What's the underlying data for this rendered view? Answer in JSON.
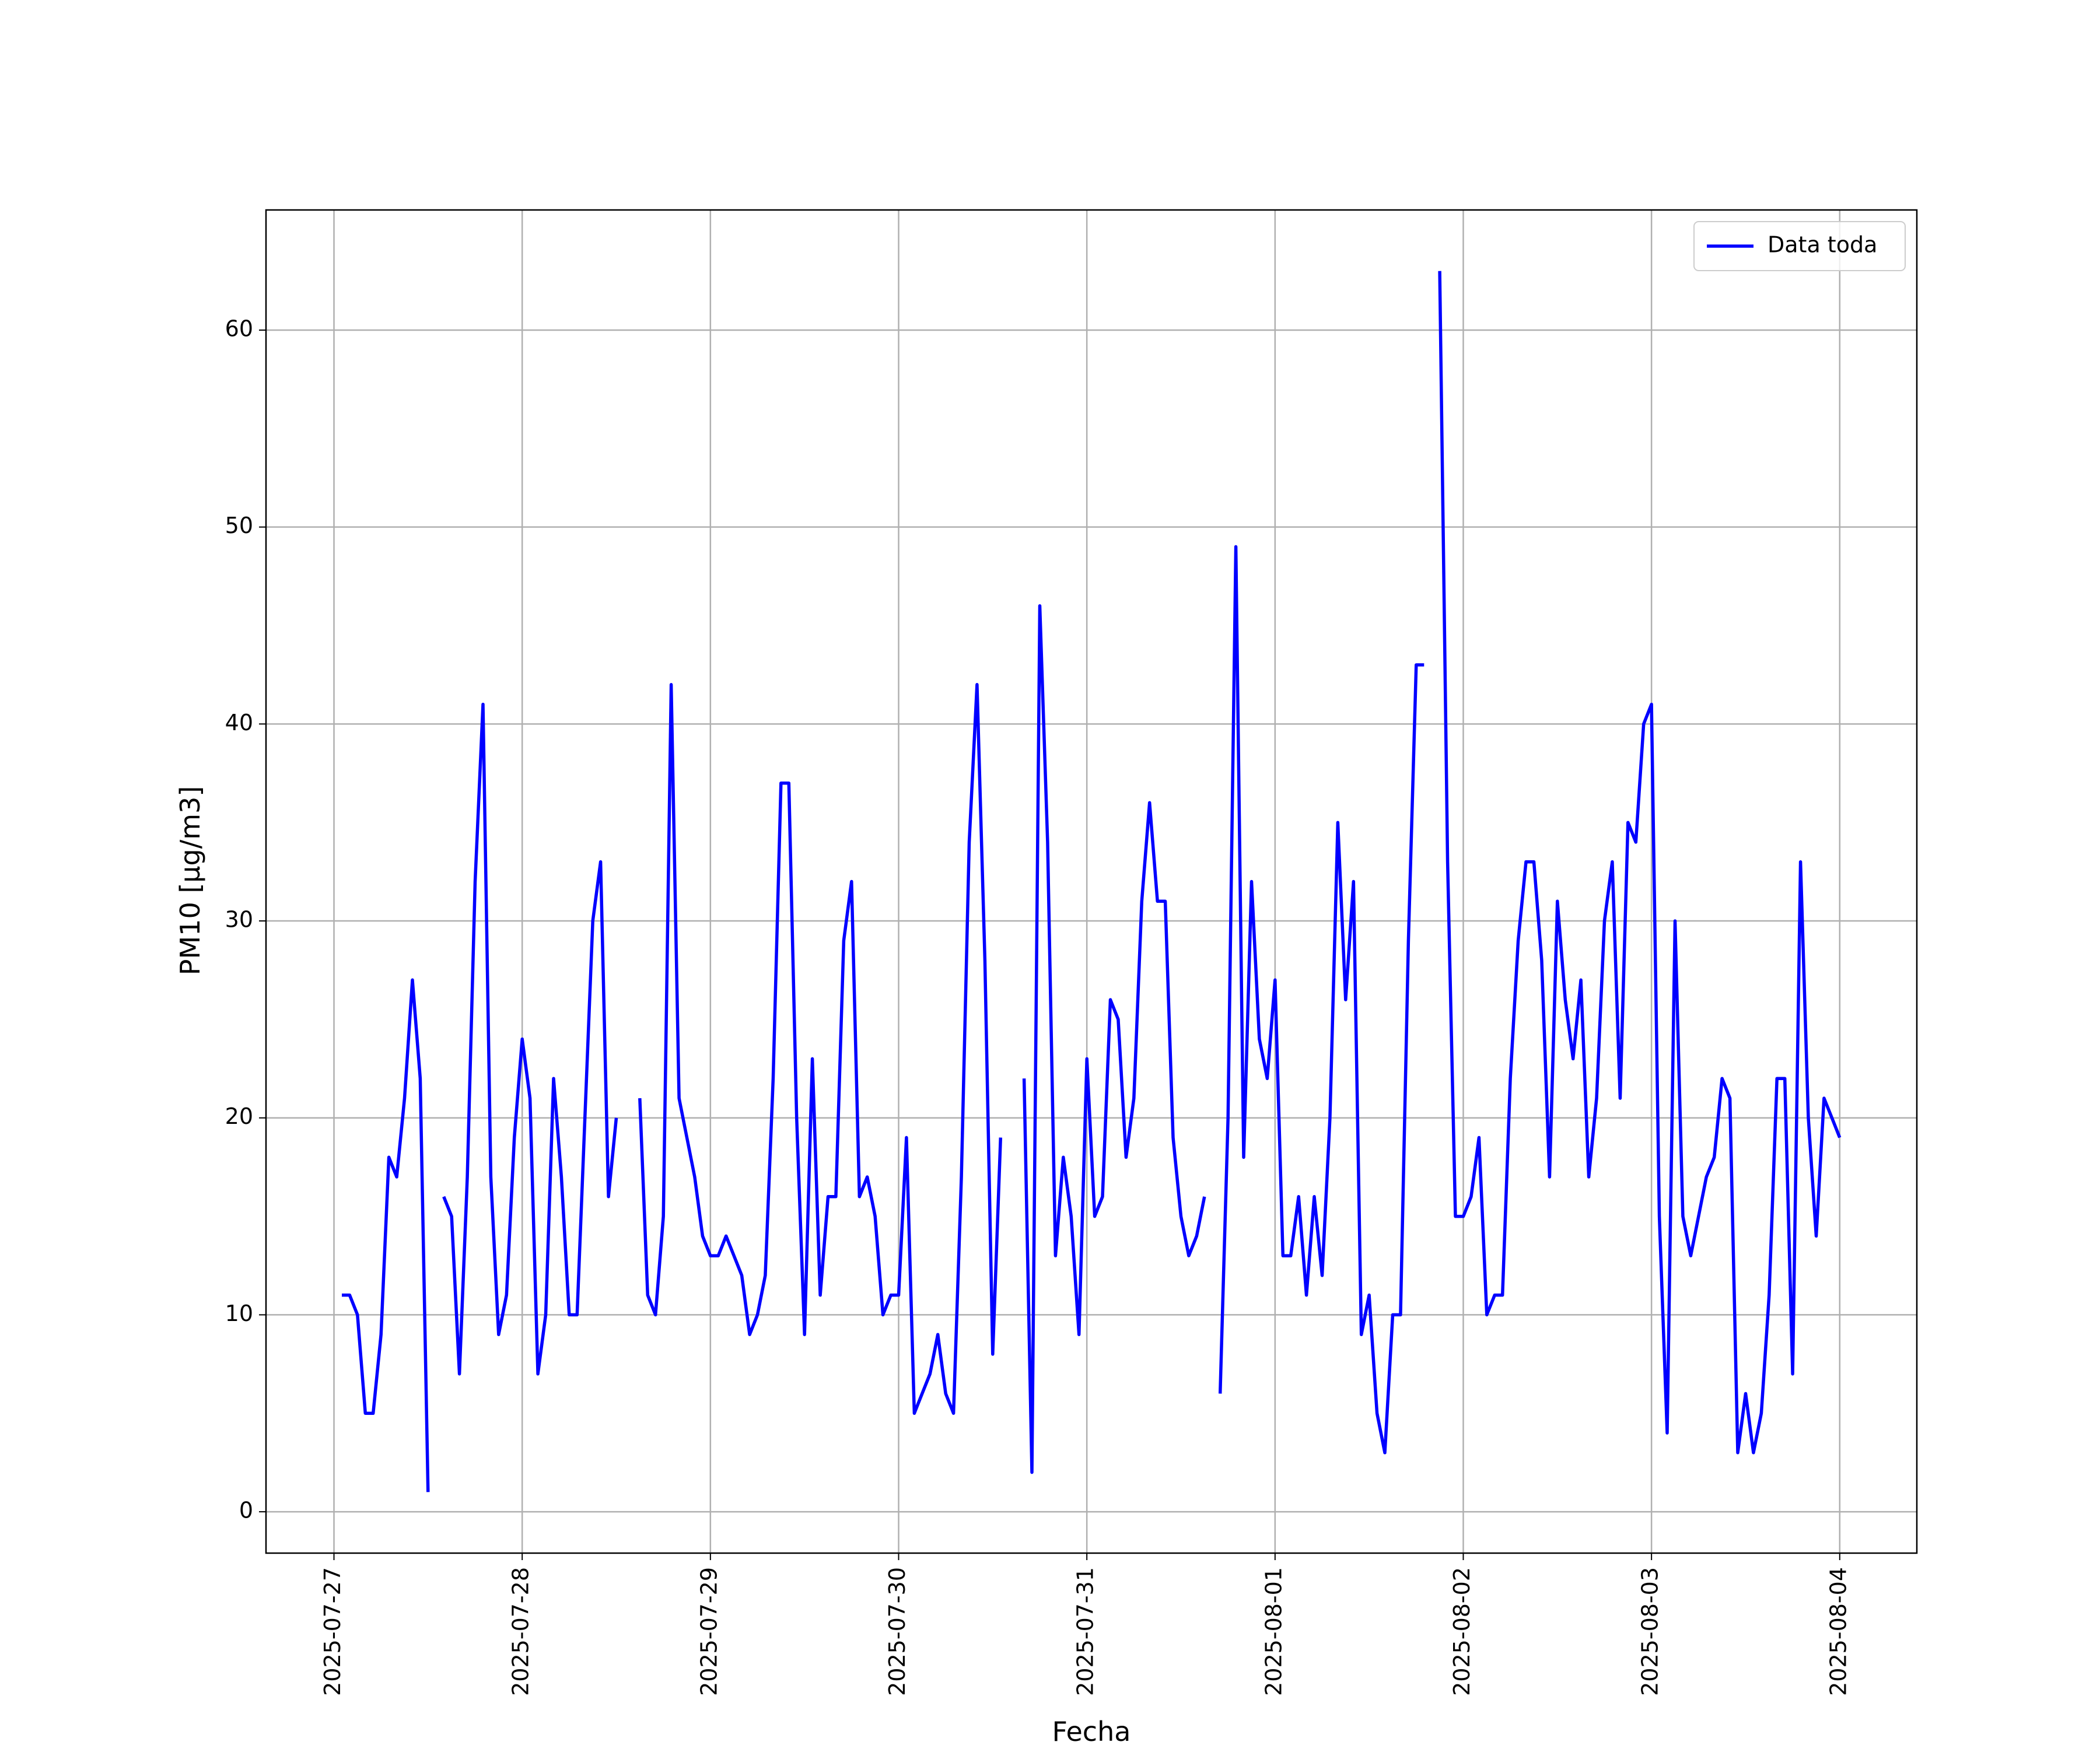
{
  "chart_data": {
    "type": "line",
    "xlabel": "Fecha",
    "ylabel": "PM10 [μg/m3]",
    "x": [
      "2025-07-27 01:00",
      "2025-07-27 02:00",
      "2025-07-27 03:00",
      "2025-07-27 04:00",
      "2025-07-27 05:00",
      "2025-07-27 06:00",
      "2025-07-27 07:00",
      "2025-07-27 08:00",
      "2025-07-27 09:00",
      "2025-07-27 10:00",
      "2025-07-27 11:00",
      "2025-07-27 12:00",
      "2025-07-27 13:00",
      "2025-07-27 14:00",
      "2025-07-27 15:00",
      "2025-07-27 16:00",
      "2025-07-27 17:00",
      "2025-07-27 18:00",
      "2025-07-27 19:00",
      "2025-07-27 20:00",
      "2025-07-27 21:00",
      "2025-07-27 22:00",
      "2025-07-27 23:00",
      "2025-07-28 00:00",
      "2025-07-28 01:00",
      "2025-07-28 02:00",
      "2025-07-28 03:00",
      "2025-07-28 04:00",
      "2025-07-28 05:00",
      "2025-07-28 06:00",
      "2025-07-28 07:00",
      "2025-07-28 08:00",
      "2025-07-28 09:00",
      "2025-07-28 10:00",
      "2025-07-28 11:00",
      "2025-07-28 12:00",
      "2025-07-28 13:00",
      "2025-07-28 14:00",
      "2025-07-28 15:00",
      "2025-07-28 16:00",
      "2025-07-28 17:00",
      "2025-07-28 18:00",
      "2025-07-28 19:00",
      "2025-07-28 20:00",
      "2025-07-28 21:00",
      "2025-07-28 22:00",
      "2025-07-28 23:00",
      "2025-07-29 00:00",
      "2025-07-29 01:00",
      "2025-07-29 02:00",
      "2025-07-29 03:00",
      "2025-07-29 04:00",
      "2025-07-29 05:00",
      "2025-07-29 06:00",
      "2025-07-29 07:00",
      "2025-07-29 08:00",
      "2025-07-29 09:00",
      "2025-07-29 10:00",
      "2025-07-29 11:00",
      "2025-07-29 12:00",
      "2025-07-29 13:00",
      "2025-07-29 14:00",
      "2025-07-29 15:00",
      "2025-07-29 16:00",
      "2025-07-29 17:00",
      "2025-07-29 18:00",
      "2025-07-29 19:00",
      "2025-07-29 20:00",
      "2025-07-29 21:00",
      "2025-07-29 22:00",
      "2025-07-29 23:00",
      "2025-07-30 00:00",
      "2025-07-30 01:00",
      "2025-07-30 02:00",
      "2025-07-30 03:00",
      "2025-07-30 04:00",
      "2025-07-30 05:00",
      "2025-07-30 06:00",
      "2025-07-30 07:00",
      "2025-07-30 08:00",
      "2025-07-30 09:00",
      "2025-07-30 10:00",
      "2025-07-30 11:00",
      "2025-07-30 12:00",
      "2025-07-30 13:00",
      "2025-07-30 14:00",
      "2025-07-30 15:00",
      "2025-07-30 16:00",
      "2025-07-30 17:00",
      "2025-07-30 18:00",
      "2025-07-30 19:00",
      "2025-07-30 20:00",
      "2025-07-30 21:00",
      "2025-07-30 22:00",
      "2025-07-30 23:00",
      "2025-07-31 00:00",
      "2025-07-31 01:00",
      "2025-07-31 02:00",
      "2025-07-31 03:00",
      "2025-07-31 04:00",
      "2025-07-31 05:00",
      "2025-07-31 06:00",
      "2025-07-31 07:00",
      "2025-07-31 08:00",
      "2025-07-31 09:00",
      "2025-07-31 10:00",
      "2025-07-31 11:00",
      "2025-07-31 12:00",
      "2025-07-31 13:00",
      "2025-07-31 14:00",
      "2025-07-31 15:00",
      "2025-07-31 16:00",
      "2025-07-31 17:00",
      "2025-07-31 18:00",
      "2025-07-31 19:00",
      "2025-07-31 20:00",
      "2025-07-31 21:00",
      "2025-07-31 22:00",
      "2025-07-31 23:00",
      "2025-08-01 00:00",
      "2025-08-01 01:00",
      "2025-08-01 02:00",
      "2025-08-01 03:00",
      "2025-08-01 04:00",
      "2025-08-01 05:00",
      "2025-08-01 06:00",
      "2025-08-01 07:00",
      "2025-08-01 08:00",
      "2025-08-01 09:00",
      "2025-08-01 10:00",
      "2025-08-01 11:00",
      "2025-08-01 12:00",
      "2025-08-01 13:00",
      "2025-08-01 14:00",
      "2025-08-01 15:00",
      "2025-08-01 16:00",
      "2025-08-01 17:00",
      "2025-08-01 18:00",
      "2025-08-01 19:00",
      "2025-08-01 20:00",
      "2025-08-01 21:00",
      "2025-08-01 22:00",
      "2025-08-01 23:00",
      "2025-08-02 00:00",
      "2025-08-02 01:00",
      "2025-08-02 02:00",
      "2025-08-02 03:00",
      "2025-08-02 04:00",
      "2025-08-02 05:00",
      "2025-08-02 06:00",
      "2025-08-02 07:00",
      "2025-08-02 08:00",
      "2025-08-02 09:00",
      "2025-08-02 10:00",
      "2025-08-02 11:00",
      "2025-08-02 12:00",
      "2025-08-02 13:00",
      "2025-08-02 14:00",
      "2025-08-02 15:00",
      "2025-08-02 16:00",
      "2025-08-02 17:00",
      "2025-08-02 18:00",
      "2025-08-02 19:00",
      "2025-08-02 20:00",
      "2025-08-02 21:00",
      "2025-08-02 22:00",
      "2025-08-02 23:00",
      "2025-08-03 00:00",
      "2025-08-03 01:00",
      "2025-08-03 02:00",
      "2025-08-03 03:00",
      "2025-08-03 04:00",
      "2025-08-03 05:00",
      "2025-08-03 06:00",
      "2025-08-03 07:00",
      "2025-08-03 08:00",
      "2025-08-03 09:00",
      "2025-08-03 10:00",
      "2025-08-03 11:00",
      "2025-08-03 12:00",
      "2025-08-03 13:00",
      "2025-08-03 14:00",
      "2025-08-03 15:00",
      "2025-08-03 16:00",
      "2025-08-03 17:00",
      "2025-08-03 18:00",
      "2025-08-03 19:00",
      "2025-08-03 20:00",
      "2025-08-03 21:00",
      "2025-08-03 22:00",
      "2025-08-03 23:00",
      "2025-08-04 00:00"
    ],
    "series": [
      {
        "name": "Data toda",
        "color": "#0000ff",
        "values": [
          11,
          11,
          10,
          5,
          5,
          9,
          18,
          17,
          21,
          27,
          22,
          1,
          null,
          16,
          15,
          7,
          17,
          32,
          41,
          17,
          9,
          11,
          19,
          24,
          21,
          7,
          10,
          22,
          17,
          10,
          10,
          20,
          30,
          33,
          16,
          20,
          null,
          null,
          21,
          11,
          10,
          15,
          42,
          21,
          19,
          17,
          14,
          13,
          13,
          14,
          13,
          12,
          9,
          10,
          12,
          22,
          37,
          37,
          20,
          9,
          23,
          11,
          16,
          16,
          29,
          32,
          16,
          17,
          15,
          10,
          11,
          11,
          19,
          5,
          6,
          7,
          9,
          6,
          5,
          17,
          34,
          42,
          28,
          8,
          19,
          null,
          null,
          22,
          2,
          46,
          34,
          13,
          18,
          15,
          9,
          23,
          15,
          16,
          26,
          25,
          18,
          21,
          31,
          36,
          31,
          31,
          19,
          15,
          13,
          14,
          16,
          null,
          6,
          20,
          49,
          18,
          32,
          24,
          22,
          27,
          13,
          13,
          16,
          11,
          16,
          12,
          20,
          35,
          26,
          32,
          9,
          11,
          5,
          3,
          10,
          10,
          29,
          43,
          43,
          null,
          63,
          33,
          15,
          15,
          16,
          19,
          10,
          11,
          11,
          22,
          29,
          33,
          33,
          28,
          17,
          31,
          26,
          23,
          27,
          17,
          21,
          30,
          33,
          21,
          35,
          34,
          40,
          41,
          15,
          4,
          30,
          15,
          13,
          15,
          17,
          18,
          22,
          21,
          3,
          6,
          3,
          5,
          11,
          22,
          22,
          7,
          33,
          20,
          14,
          21,
          20,
          19
        ]
      }
    ],
    "xlim": [
      "2025-07-26 15:20",
      "2025-08-04 09:50"
    ],
    "xticks": [
      "2025-07-27",
      "2025-07-28",
      "2025-07-29",
      "2025-07-30",
      "2025-07-31",
      "2025-08-01",
      "2025-08-02",
      "2025-08-03",
      "2025-08-04"
    ],
    "ylim": [
      -2.1,
      66.1
    ],
    "yticks": [
      0,
      10,
      20,
      30,
      40,
      50,
      60
    ],
    "grid": true,
    "legend": "upper right"
  }
}
